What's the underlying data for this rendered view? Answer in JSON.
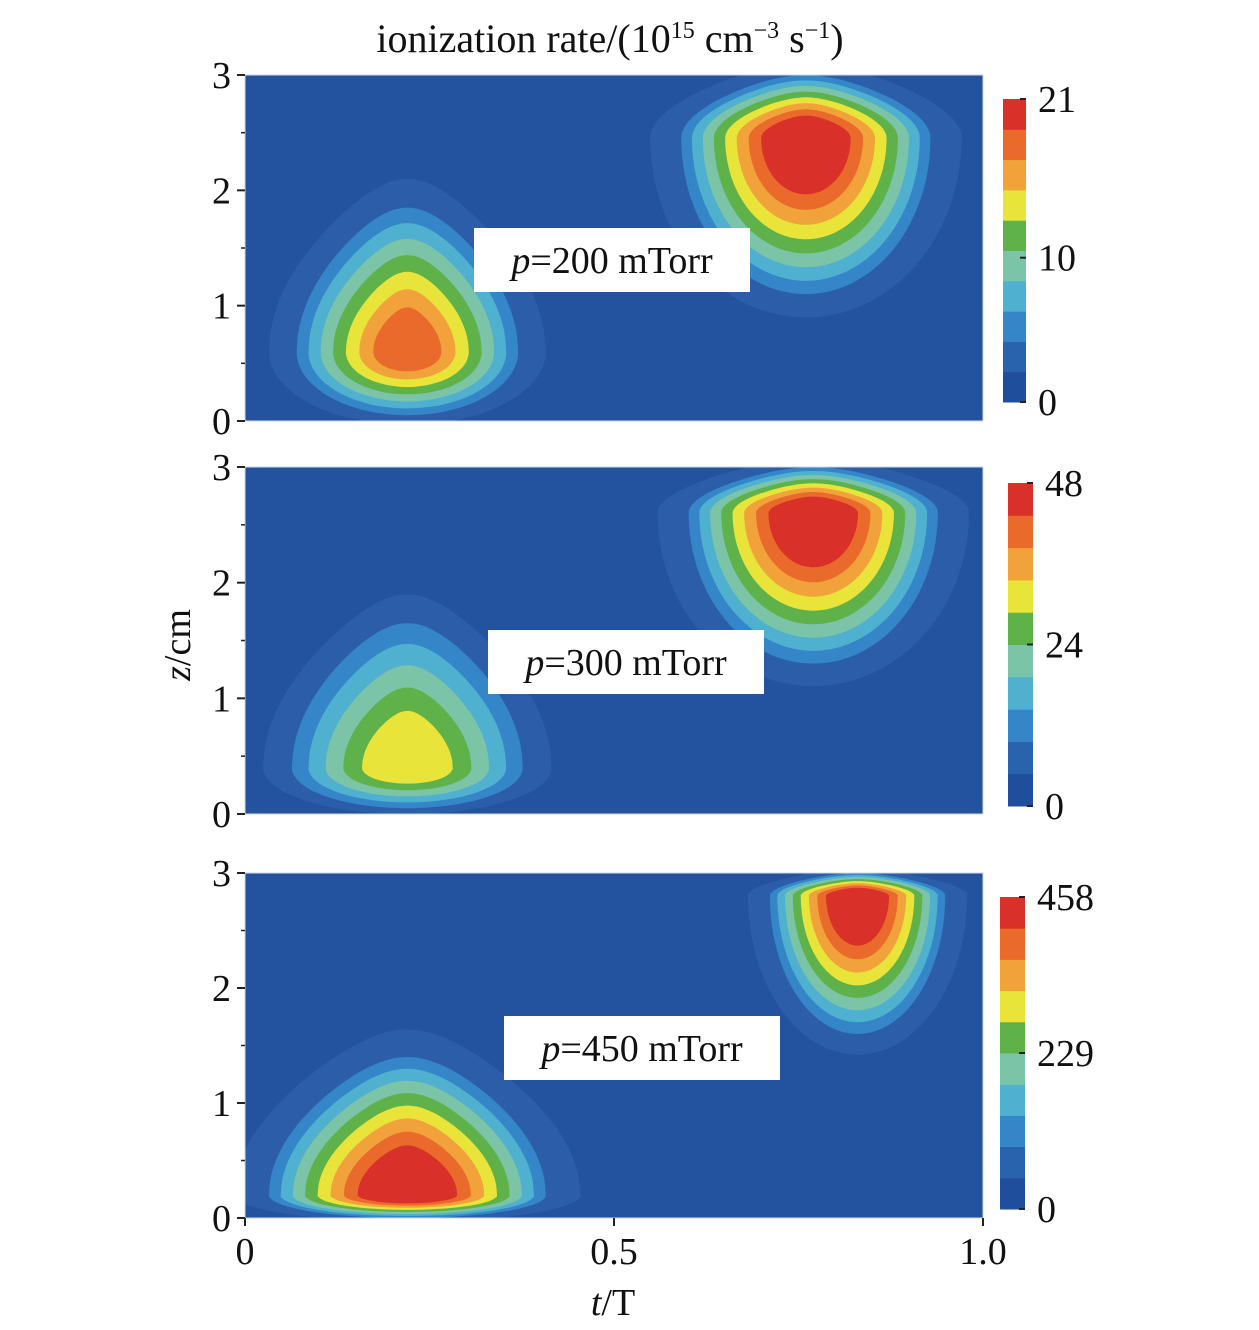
{
  "figure": {
    "title_main": "ionization rate/(10",
    "title_exp1": "15",
    "title_mid": " cm",
    "title_exp2": "−3",
    "title_s": " s",
    "title_exp3": "−1",
    "title_end": ")",
    "ylabel_var": "z",
    "ylabel_unit": "/cm",
    "xlabel_var": "t",
    "xlabel_unit": "/T"
  },
  "colors": {
    "levels": [
      "#1f4e9c",
      "#2a63ad",
      "#3486c8",
      "#4fb1cf",
      "#7cc4a8",
      "#5fb14a",
      "#e9e43a",
      "#f2a23a",
      "#ea6a2c",
      "#d9302a"
    ],
    "background_level": "#23529f",
    "halo": "#2e5ea8"
  },
  "chart_data": [
    {
      "type": "heatmap",
      "panel_label_var": "p",
      "panel_label_rest": "=200 mTorr",
      "xlim": [
        0,
        1.0
      ],
      "ylim": [
        0,
        3
      ],
      "yticks": [
        "0",
        "1",
        "2",
        "3"
      ],
      "colorbar": {
        "min": 0,
        "max": 21,
        "ticks": [
          "21",
          "10",
          "0"
        ],
        "tick_values": [
          21,
          10,
          0
        ]
      },
      "peaks": [
        {
          "t": 0.22,
          "z": 0.6,
          "peak_fraction": 0.75,
          "t_width": 0.24,
          "z_low": 0.05,
          "z_high": 1.85
        },
        {
          "t": 0.76,
          "z": 2.45,
          "peak_fraction": 1.0,
          "t_width": 0.27,
          "z_low": 1.1,
          "z_high": 3.0
        }
      ]
    },
    {
      "type": "heatmap",
      "panel_label_var": "p",
      "panel_label_rest": "=300 mTorr",
      "xlim": [
        0,
        1.0
      ],
      "ylim": [
        0,
        3
      ],
      "yticks": [
        "0",
        "1",
        "2",
        "3"
      ],
      "colorbar": {
        "min": 0,
        "max": 48,
        "ticks": [
          "48",
          "24",
          "0"
        ],
        "tick_values": [
          48,
          24,
          0
        ]
      },
      "peaks": [
        {
          "t": 0.22,
          "z": 0.4,
          "peak_fraction": 0.62,
          "t_width": 0.25,
          "z_low": 0.05,
          "z_high": 1.65
        },
        {
          "t": 0.77,
          "z": 2.6,
          "peak_fraction": 1.0,
          "t_width": 0.27,
          "z_low": 1.3,
          "z_high": 3.0
        }
      ]
    },
    {
      "type": "heatmap",
      "panel_label_var": "p",
      "panel_label_rest": "=450 mTorr",
      "xlim": [
        0,
        1.0
      ],
      "ylim": [
        0,
        3
      ],
      "yticks": [
        "0",
        "1",
        "2",
        "3"
      ],
      "xticks": [
        "0",
        "0.5",
        "1.0"
      ],
      "colorbar": {
        "min": 0,
        "max": 458,
        "ticks": [
          "458",
          "229",
          "0"
        ],
        "tick_values": [
          458,
          229,
          0
        ]
      },
      "peaks": [
        {
          "t": 0.22,
          "z": 0.2,
          "peak_fraction": 0.95,
          "t_width": 0.3,
          "z_low": 0.0,
          "z_high": 1.4
        },
        {
          "t": 0.83,
          "z": 2.8,
          "peak_fraction": 1.0,
          "t_width": 0.19,
          "z_low": 1.6,
          "z_high": 3.0
        }
      ]
    }
  ]
}
